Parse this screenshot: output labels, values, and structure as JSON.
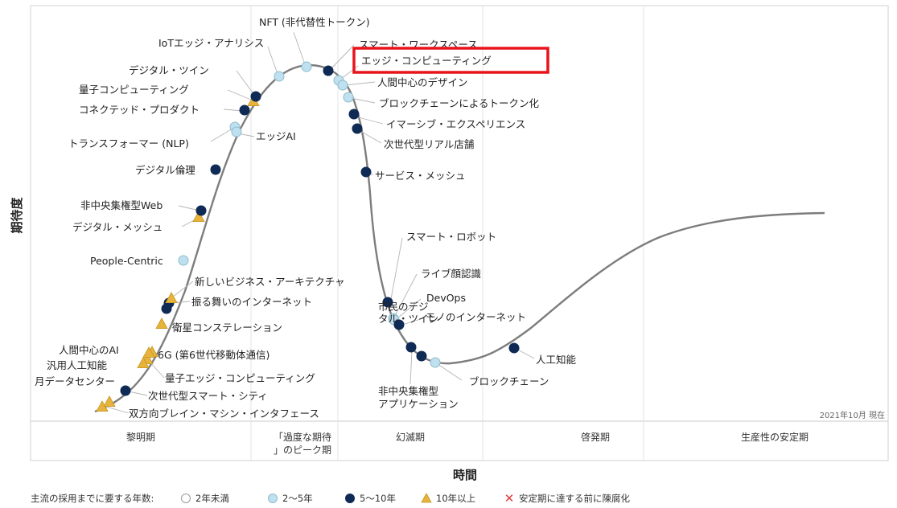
{
  "chart_data": {
    "type": "line",
    "ylabel": "期待度",
    "xlabel": "時間",
    "as_of": "2021年10月 現在",
    "phases": [
      "黎明期",
      "「過度な期待」のピーク期",
      "幻滅期",
      "啓発期",
      "生産性の安定期"
    ],
    "legend": {
      "title": "主流の採用までに要する年数:",
      "items": [
        {
          "key": "lt2",
          "label": "2年未満",
          "color": "#ffffff"
        },
        {
          "key": "y2to5",
          "label": "2～5年",
          "color": "#bfe0ee"
        },
        {
          "key": "y5to10",
          "label": "5～10年",
          "color": "#0e2a55"
        },
        {
          "key": "y10plus",
          "label": "10年以上",
          "color": "#e6b43c"
        },
        {
          "key": "obsolete",
          "label": "安定期に達する前に陳腐化",
          "color": "#e23b3b"
        }
      ]
    },
    "highlighted": "エッジ・コンピューティング",
    "technologies": [
      {
        "label": "双方向ブレイン・マシン・インタフェース",
        "category": "y10plus"
      },
      {
        "label": "月データセンター",
        "category": "y10plus"
      },
      {
        "label": "次世代型スマート・シティ",
        "category": "y5to10"
      },
      {
        "label": "量子エッジ・コンピューティング",
        "category": "y10plus"
      },
      {
        "label": "汎用人工知能",
        "category": "y10plus"
      },
      {
        "label": "6G (第6世代移動体通信)",
        "category": "y10plus"
      },
      {
        "label": "人間中心のAI",
        "category": "y10plus"
      },
      {
        "label": "衛星コンステレーション",
        "category": "y10plus"
      },
      {
        "label": "市民のデジタル・ツイン",
        "category": "y5to10"
      },
      {
        "label": "振る舞いのインターネット",
        "category": "y5to10"
      },
      {
        "label": "新しいビジネス・アーキテクチャ",
        "category": "y10plus"
      },
      {
        "label": "People-Centric",
        "category": "y2to5"
      },
      {
        "label": "デジタル・メッシュ",
        "category": "y10plus"
      },
      {
        "label": "非中央集権型Web",
        "category": "y5to10"
      },
      {
        "label": "デジタル倫理",
        "category": "y5to10"
      },
      {
        "label": "トランスフォーマー (NLP)",
        "category": "y2to5"
      },
      {
        "label": "エッジAI",
        "category": "y2to5"
      },
      {
        "label": "コネクテッド・プロダクト",
        "category": "y5to10"
      },
      {
        "label": "量子コンピューティング",
        "category": "y10plus"
      },
      {
        "label": "デジタル・ツイン",
        "category": "y5to10"
      },
      {
        "label": "IoTエッジ・アナリシス",
        "category": "y2to5"
      },
      {
        "label": "NFT (非代替性トークン)",
        "category": "y2to5"
      },
      {
        "label": "スマート・ワークスペース",
        "category": "y5to10"
      },
      {
        "label": "エッジ・コンピューティング",
        "category": "y2to5"
      },
      {
        "label": "人間中心のデザイン",
        "category": "y2to5"
      },
      {
        "label": "ブロックチェーンによるトークン化",
        "category": "y2to5"
      },
      {
        "label": "イマーシブ・エクスペリエンス",
        "category": "y5to10"
      },
      {
        "label": "次世代型リアル店舗",
        "category": "y5to10"
      },
      {
        "label": "サービス・メッシュ",
        "category": "y5to10"
      },
      {
        "label": "スマート・ロボット",
        "category": "y5to10"
      },
      {
        "label": "ライブ顔認識",
        "category": "y2to5"
      },
      {
        "label": "DevOps",
        "category": "y2to5"
      },
      {
        "label": "モノのインターネット",
        "category": "y5to10"
      },
      {
        "label": "非中央集権型アプリケーション",
        "category": "y5to10"
      },
      {
        "label": "ブロックチェーン",
        "category": "y2to5"
      },
      {
        "label": "人工知能",
        "category": "y5to10"
      }
    ]
  }
}
